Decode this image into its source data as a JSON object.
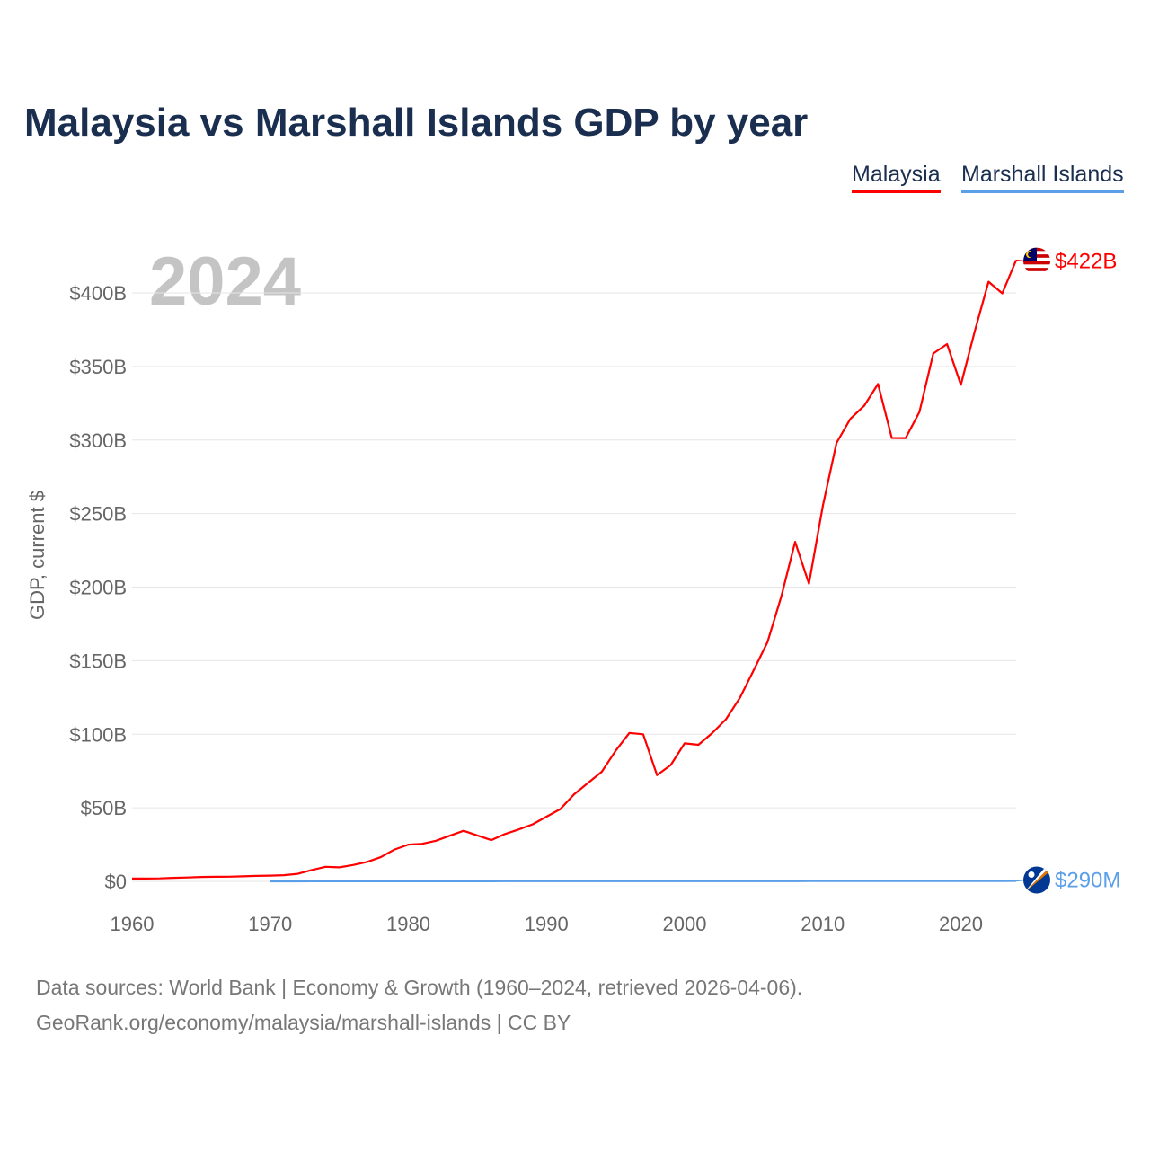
{
  "chart_data": {
    "type": "line",
    "title": "Malaysia vs Marshall Islands GDP by year",
    "ylabel": "GDP, current $",
    "xlabel": "",
    "highlight_year": "2024",
    "xlim": [
      1960,
      2024
    ],
    "ylim": [
      0,
      430
    ],
    "y_unit": "billions USD",
    "grid": true,
    "legend_position": "top-right",
    "x_ticks": [
      1960,
      1970,
      1980,
      1990,
      2000,
      2010,
      2020
    ],
    "x_tick_labels": [
      "1960",
      "1970",
      "1980",
      "1990",
      "2000",
      "2010",
      "2020"
    ],
    "y_ticks": [
      0,
      50,
      100,
      150,
      200,
      250,
      300,
      350,
      400
    ],
    "y_tick_labels": [
      "$0",
      "$50B",
      "$100B",
      "$150B",
      "$200B",
      "$250B",
      "$300B",
      "$350B",
      "$400B"
    ],
    "series": [
      {
        "name": "Malaysia",
        "color": "#ff0000",
        "end_label": "$422B",
        "start_year": 1960,
        "values": [
          1.9,
          1.9,
          2.0,
          2.4,
          2.6,
          3.0,
          3.1,
          3.2,
          3.4,
          3.7,
          3.9,
          4.2,
          5.1,
          7.7,
          9.9,
          9.5,
          11.1,
          13.2,
          16.4,
          21.6,
          25.0,
          25.5,
          27.6,
          31.0,
          34.4,
          31.2,
          28.0,
          32.2,
          35.3,
          38.8,
          44.0,
          49.1,
          59.2,
          66.9,
          74.5,
          88.7,
          100.9,
          100.0,
          72.2,
          79.1,
          93.8,
          92.8,
          100.8,
          110.2,
          124.7,
          143.5,
          162.7,
          193.5,
          230.8,
          202.3,
          255.0,
          298.0,
          314.4,
          323.3,
          338.1,
          301.4,
          301.3,
          319.1,
          358.8,
          365.2,
          337.5,
          373.8,
          407.6,
          399.7,
          422.2
        ]
      },
      {
        "name": "Marshall Islands",
        "color": "#5a9fe8",
        "end_label": "$290M",
        "start_year": 1970,
        "values": [
          0.03,
          0.03,
          0.03,
          0.04,
          0.04,
          0.05,
          0.05,
          0.06,
          0.06,
          0.07,
          0.07,
          0.08,
          0.08,
          0.08,
          0.09,
          0.09,
          0.09,
          0.1,
          0.1,
          0.1,
          0.1,
          0.11,
          0.11,
          0.12,
          0.12,
          0.12,
          0.12,
          0.12,
          0.11,
          0.11,
          0.11,
          0.12,
          0.13,
          0.13,
          0.14,
          0.14,
          0.15,
          0.15,
          0.15,
          0.16,
          0.16,
          0.17,
          0.18,
          0.19,
          0.2,
          0.2,
          0.21,
          0.22,
          0.23,
          0.24,
          0.24,
          0.25,
          0.26,
          0.27,
          0.29
        ]
      }
    ]
  },
  "source_line1": "Data sources: World Bank | Economy & Growth (1960–2024, retrieved 2026-04-06).",
  "source_line2": "GeoRank.org/economy/malaysia/marshall-islands | CC BY"
}
